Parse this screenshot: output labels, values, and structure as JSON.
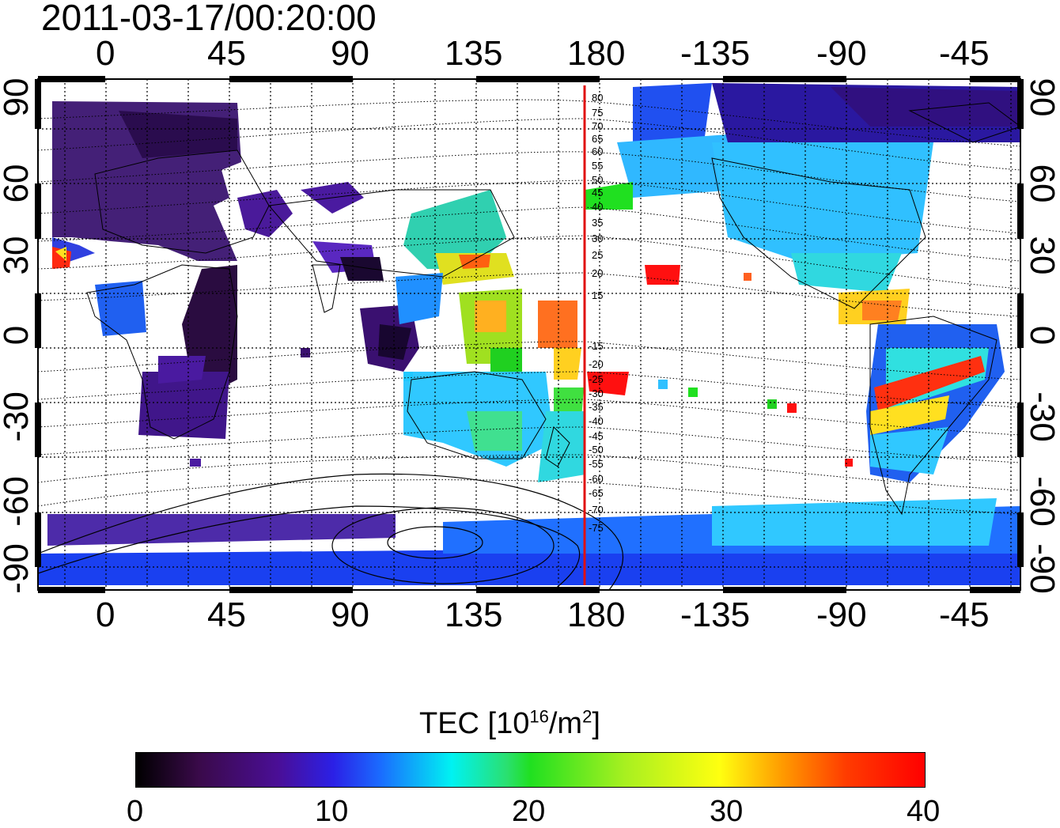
{
  "title": "2011-03-17/00:20:00",
  "top_lon_ticks": [
    "0",
    "45",
    "90",
    "135",
    "180",
    "-135",
    "-90",
    "-45"
  ],
  "bottom_lon_ticks": [
    "0",
    "45",
    "90",
    "135",
    "180",
    "-135",
    "-90",
    "-45"
  ],
  "lat_ticks": [
    "90",
    "60",
    "30",
    "0",
    "-30",
    "-60",
    "-90"
  ],
  "colorbar": {
    "title_prefix": "TEC  [10",
    "title_exp": "16",
    "title_mid": "/m",
    "title_exp2": "2",
    "title_suffix": "]",
    "tick_labels": [
      "0",
      "10",
      "20",
      "30",
      "40"
    ],
    "min": 0,
    "max": 40
  },
  "contour_labels": [
    "80",
    "75",
    "70",
    "65",
    "60",
    "55",
    "50",
    "45",
    "40",
    "35",
    "30",
    "25",
    "20",
    "15",
    "-15",
    "-20",
    "-25",
    "-30",
    "-35",
    "-40",
    "-45",
    "-50",
    "-55",
    "-60",
    "-65",
    "-70",
    "-75"
  ],
  "colors": {
    "meridian": "#e01010",
    "frame": "#000000"
  }
}
